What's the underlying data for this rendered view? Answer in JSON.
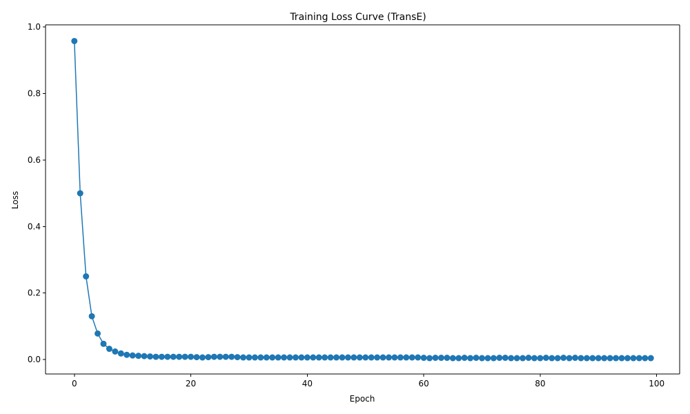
{
  "chart_data": {
    "type": "line",
    "title": "Training Loss Curve (TransE)",
    "xlabel": "Epoch",
    "ylabel": "Loss",
    "xlim": [
      -4.95,
      103.95
    ],
    "ylim": [
      -0.0437,
      1.0067
    ],
    "x_ticks": [
      0,
      20,
      40,
      60,
      80,
      100
    ],
    "y_ticks": [
      0.0,
      0.2,
      0.4,
      0.6,
      0.8,
      1.0
    ],
    "x_tick_labels": [
      "0",
      "20",
      "40",
      "60",
      "80",
      "100"
    ],
    "y_tick_labels": [
      "0.0",
      "0.2",
      "0.4",
      "0.6",
      "0.8",
      "1.0"
    ],
    "grid": false,
    "series_color": "#1f77b4",
    "marker": "circle",
    "x": [
      0,
      1,
      2,
      3,
      4,
      5,
      6,
      7,
      8,
      9,
      10,
      11,
      12,
      13,
      14,
      15,
      16,
      17,
      18,
      19,
      20,
      21,
      22,
      23,
      24,
      25,
      26,
      27,
      28,
      29,
      30,
      31,
      32,
      33,
      34,
      35,
      36,
      37,
      38,
      39,
      40,
      41,
      42,
      43,
      44,
      45,
      46,
      47,
      48,
      49,
      50,
      51,
      52,
      53,
      54,
      55,
      56,
      57,
      58,
      59,
      60,
      61,
      62,
      63,
      64,
      65,
      66,
      67,
      68,
      69,
      70,
      71,
      72,
      73,
      74,
      75,
      76,
      77,
      78,
      79,
      80,
      81,
      82,
      83,
      84,
      85,
      86,
      87,
      88,
      89,
      90,
      91,
      92,
      93,
      94,
      95,
      96,
      97,
      98,
      99
    ],
    "y": [
      0.958,
      0.5,
      0.25,
      0.13,
      0.078,
      0.047,
      0.032,
      0.024,
      0.018,
      0.014,
      0.012,
      0.011,
      0.01,
      0.009,
      0.008,
      0.008,
      0.008,
      0.008,
      0.008,
      0.008,
      0.008,
      0.007,
      0.006,
      0.007,
      0.008,
      0.008,
      0.008,
      0.008,
      0.007,
      0.006,
      0.006,
      0.006,
      0.006,
      0.006,
      0.006,
      0.006,
      0.006,
      0.006,
      0.006,
      0.006,
      0.006,
      0.006,
      0.006,
      0.006,
      0.006,
      0.006,
      0.006,
      0.006,
      0.006,
      0.006,
      0.006,
      0.006,
      0.006,
      0.006,
      0.006,
      0.006,
      0.006,
      0.006,
      0.006,
      0.006,
      0.005,
      0.004,
      0.005,
      0.005,
      0.005,
      0.004,
      0.004,
      0.005,
      0.004,
      0.005,
      0.004,
      0.004,
      0.004,
      0.005,
      0.005,
      0.004,
      0.004,
      0.004,
      0.005,
      0.004,
      0.004,
      0.005,
      0.004,
      0.004,
      0.005,
      0.004,
      0.005,
      0.004,
      0.004,
      0.004,
      0.004,
      0.004,
      0.004,
      0.004,
      0.004,
      0.004,
      0.004,
      0.004,
      0.004,
      0.004
    ]
  }
}
